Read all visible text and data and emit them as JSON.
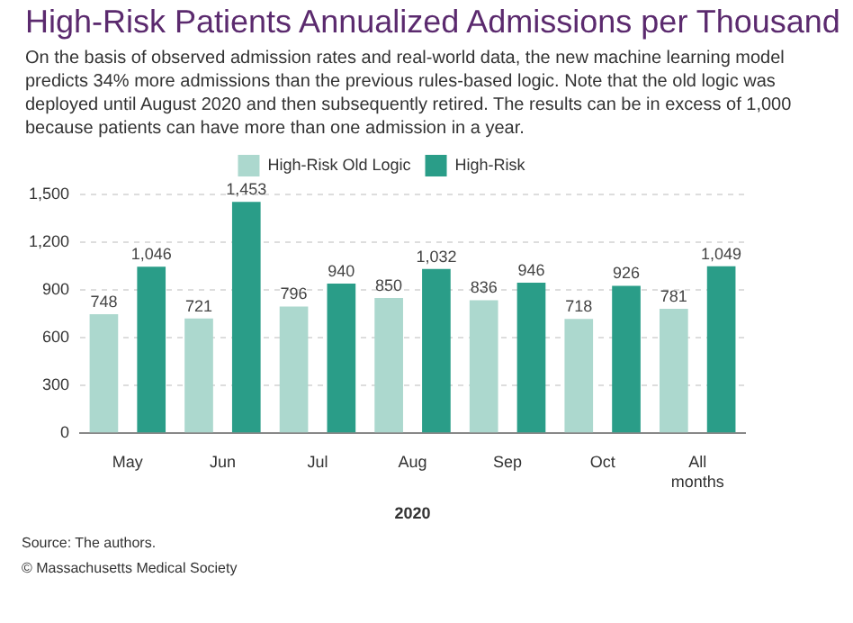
{
  "chart_data": {
    "type": "bar",
    "title": "High-Risk Patients Annualized Admissions per Thousand",
    "subtitle": "On the basis of observed admission rates and real-world data, the new machine learning model predicts 34% more admissions than the previous rules-based logic. Note that the old logic was deployed until August 2020 and then subsequently retired. The results can be in excess of 1,000 because patients can have more than one admission in a year.",
    "xlabel": "2020",
    "categories": [
      "May",
      "Jun",
      "Jul",
      "Aug",
      "Sep",
      "Oct",
      "All months"
    ],
    "series": [
      {
        "name": "High-Risk Old Logic",
        "color": "#acd8ce",
        "values": [
          748,
          721,
          796,
          850,
          836,
          718,
          781
        ],
        "value_labels": [
          "748",
          "721",
          "796",
          "850",
          "836",
          "718",
          "781"
        ]
      },
      {
        "name": "High-Risk",
        "color": "#2a9d88",
        "values": [
          1046,
          1453,
          940,
          1032,
          946,
          926,
          1049
        ],
        "value_labels": [
          "1,046",
          "1,453",
          "940",
          "1,032",
          "946",
          "926",
          "1,049"
        ]
      }
    ],
    "ylim": [
      0,
      1500
    ],
    "yticks": [
      {
        "value": 0,
        "label": "0"
      },
      {
        "value": 300,
        "label": "300"
      },
      {
        "value": 600,
        "label": "600"
      },
      {
        "value": 900,
        "label": "900"
      },
      {
        "value": 1200,
        "label": "1,200"
      },
      {
        "value": 1500,
        "label": "1,500"
      }
    ],
    "grid": "y",
    "legend": "top",
    "annotations": [
      "Source: The authors.",
      "© Massachusetts Medical Society"
    ]
  }
}
